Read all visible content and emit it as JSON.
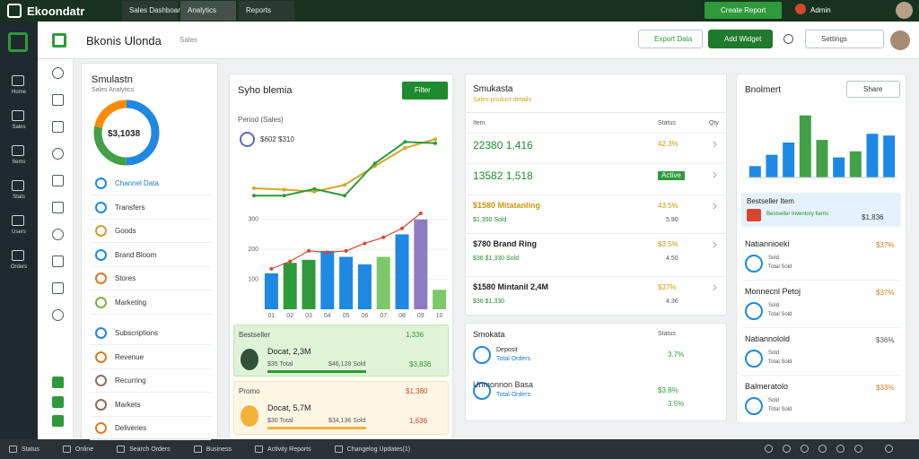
{
  "topbar": {
    "brand": "Ekoondatr",
    "tabs": [
      "Sales Dashboard",
      "Analytics",
      "Reports"
    ],
    "action": "Create Report",
    "user": "Admin"
  },
  "sidebar": {
    "items": [
      "Home",
      "Sales",
      "Items",
      "Stats",
      "Users",
      "Orders"
    ]
  },
  "header": {
    "title": "Bkonis Ulonda",
    "subtitle": "Sales",
    "buttons": [
      "Export Data",
      "Add Widget",
      "Settings"
    ]
  },
  "summary": {
    "title": "Smulastn",
    "subtitle": "Sales Analytics",
    "total": "$3,1038",
    "donut": [
      {
        "color": "#1e88e5",
        "value": 50
      },
      {
        "color": "#43a047",
        "value": 28
      },
      {
        "color": "#fb8c00",
        "value": 22
      }
    ],
    "menu": [
      "Channel Data",
      "Transfers",
      "Goods",
      "Brand Bloom",
      "Stores",
      "Marketing",
      "Subscriptions",
      "Revenue",
      "Recurring",
      "Markets",
      "Deliveries"
    ]
  },
  "trend": {
    "title": "Syho blemia",
    "button": "Filter",
    "legend": "Period (Sales)",
    "value": "$602 $310",
    "lines": {
      "ylim": [
        0,
        100
      ],
      "series": [
        {
          "color": "#d4a72c",
          "values": [
            20,
            18,
            15,
            25,
            53,
            80,
            93
          ]
        },
        {
          "color": "#2e9a3a",
          "values": [
            9,
            9,
            19,
            9,
            57,
            89,
            87
          ]
        }
      ]
    },
    "bars": {
      "categories": [
        "01",
        "02",
        "03",
        "04",
        "05",
        "06",
        "07",
        "08",
        "09",
        "10"
      ],
      "ylim": [
        0,
        350
      ],
      "yticks": [
        100,
        200,
        300
      ],
      "colors": [
        "#1e88e5",
        "#2e9a3a",
        "#2e9a3a",
        "#1e88e5",
        "#1e88e5",
        "#1e88e5",
        "#7cc86a",
        "#1e88e5",
        "#8e7cc3",
        "#7cc86a"
      ],
      "values": [
        120,
        155,
        165,
        195,
        175,
        150,
        175,
        250,
        300,
        65
      ],
      "line": {
        "color": "#d9452f",
        "values": [
          135,
          160,
          195,
          190,
          195,
          220,
          240,
          270,
          320,
          null
        ]
      }
    },
    "cards": [
      {
        "label": "Bestseller",
        "value": "1,336",
        "title": "Docat, 2,3M",
        "sub": "$35 Total",
        "sub2": "$46,128 Sold",
        "amount": "$3,836"
      },
      {
        "label": "Promo",
        "value": "$1,380",
        "title": "Docat, 5,7M",
        "sub": "$30 Total",
        "sub2": "$34,136 Sold",
        "amount": "1,636"
      }
    ]
  },
  "table": {
    "title": "Smukasta",
    "subtitle": "Sales product details",
    "columns": [
      "Item",
      "Status",
      "Qty"
    ],
    "rows": [
      {
        "main": "22380 1,416",
        "value": "42.3%",
        "sub": null,
        "sub2": null
      },
      {
        "main": "13582 1,518",
        "value": "Active",
        "sub": null,
        "sub2": null
      },
      {
        "main": "$1580 Mitatanling",
        "value": "43.5%",
        "sub": "$1,350 Sold",
        "sub2": "5.90"
      },
      {
        "main": "$780 Brand Ring",
        "value": "$3.5%",
        "sub": "$36 $1,330 Sold",
        "sub2": "4.50"
      },
      {
        "main": "$1580 Mintanil 2,4M",
        "value": "$37%",
        "sub": "$36 $1,330",
        "sub2": "4.36"
      }
    ]
  },
  "stock": {
    "title": "Smokata",
    "column": "Status",
    "rows": [
      {
        "title": "Deposit",
        "sub": "Total Orders",
        "value": "3.7%"
      },
      {
        "title": "Unmonnon Basa",
        "sub": "Total Orders",
        "value": "$3.8%"
      }
    ],
    "value2": "3.5%"
  },
  "side": {
    "title": "Bnolmert",
    "button": "Share",
    "ylim": [
      0,
      80
    ],
    "colors": [
      "#1e88e5",
      "#1e88e5",
      "#1e88e5",
      "#43a047",
      "#43a047",
      "#1e88e5",
      "#43a047",
      "#1e88e5",
      "#1e88e5"
    ],
    "values": [
      13,
      26,
      40,
      71,
      43,
      23,
      30,
      50,
      48
    ],
    "highlight": {
      "title": "Bestseller Item",
      "sub": "Bestseller Inventory Items",
      "value": "$1,836"
    },
    "items": [
      {
        "title": "Natiannioeki",
        "sub": "Sold",
        "sub2": "Total Sold",
        "value": "$37%"
      },
      {
        "title": "Monnecnl Petoj",
        "sub": "Sold",
        "sub2": "Total Sold",
        "value": "$37%"
      },
      {
        "title": "Natiannolold",
        "sub": "Sold",
        "sub2": "Total Sold",
        "value": "$36%"
      },
      {
        "title": "Balmeratolo",
        "sub": "Sold",
        "sub2": "Total Sold",
        "value": "$33%"
      }
    ]
  },
  "statusbar": {
    "items": [
      "Status",
      "Online",
      "Search Orders",
      "Business",
      "Activity Reports",
      "Changelog Updates(1)"
    ]
  }
}
